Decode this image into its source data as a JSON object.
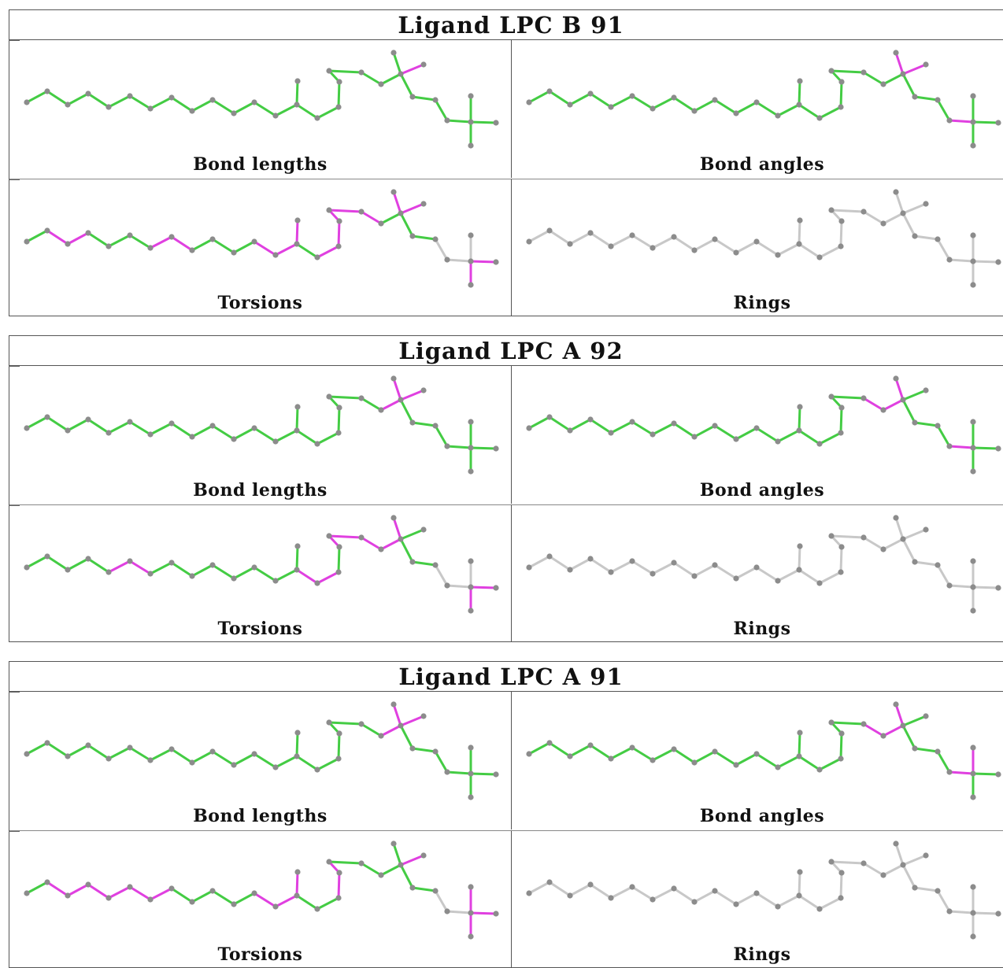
{
  "colors": {
    "outlier": "#e040e0",
    "ok": "#44cc44",
    "none": "#c8c8c8",
    "atom": "#8c8c8c"
  },
  "blocks": [
    {
      "title": "Ligand LPC B 91",
      "panels": [
        {
          "label": "Bond lengths",
          "highlight": [
            22
          ],
          "default": "ok"
        },
        {
          "label": "Bond angles",
          "highlight": [
            21,
            22,
            26
          ],
          "default": "ok"
        },
        {
          "label": "Torsions",
          "highlight": [
            1,
            2,
            6,
            7,
            11,
            12,
            14,
            15,
            16,
            17,
            18,
            19,
            21,
            22,
            28,
            29,
            30,
            31
          ],
          "default": "ok",
          "grey": [
            25,
            26,
            27,
            32,
            33,
            34,
            35,
            36
          ]
        },
        {
          "label": "Rings",
          "highlight": [],
          "default": "none"
        }
      ]
    },
    {
      "title": "Ligand LPC A 92",
      "panels": [
        {
          "label": "Bond lengths",
          "highlight": [
            20,
            21,
            22
          ],
          "default": "ok"
        },
        {
          "label": "Bond angles",
          "highlight": [
            19,
            20,
            21,
            26
          ],
          "default": "ok"
        },
        {
          "label": "Torsions",
          "highlight": [
            4,
            5,
            13,
            14,
            17,
            18,
            19,
            20,
            21,
            28,
            29,
            30,
            31
          ],
          "default": "ok",
          "grey": [
            25,
            26,
            27,
            32,
            33,
            34,
            35,
            36
          ]
        },
        {
          "label": "Rings",
          "highlight": [],
          "default": "none"
        }
      ]
    },
    {
      "title": "Ligand LPC A 91",
      "panels": [
        {
          "label": "Bond lengths",
          "highlight": [
            20,
            21,
            22
          ],
          "default": "ok"
        },
        {
          "label": "Bond angles",
          "highlight": [
            19,
            20,
            21,
            26,
            27
          ],
          "default": "ok"
        },
        {
          "label": "Torsions",
          "highlight": [
            1,
            2,
            3,
            4,
            5,
            6,
            11,
            12,
            15,
            16,
            17,
            22,
            27,
            28,
            29,
            30,
            34
          ],
          "default": "ok",
          "grey": [
            25,
            26,
            31,
            32,
            33,
            35,
            36
          ]
        },
        {
          "label": "Rings",
          "highlight": [],
          "default": "none"
        }
      ]
    }
  ]
}
